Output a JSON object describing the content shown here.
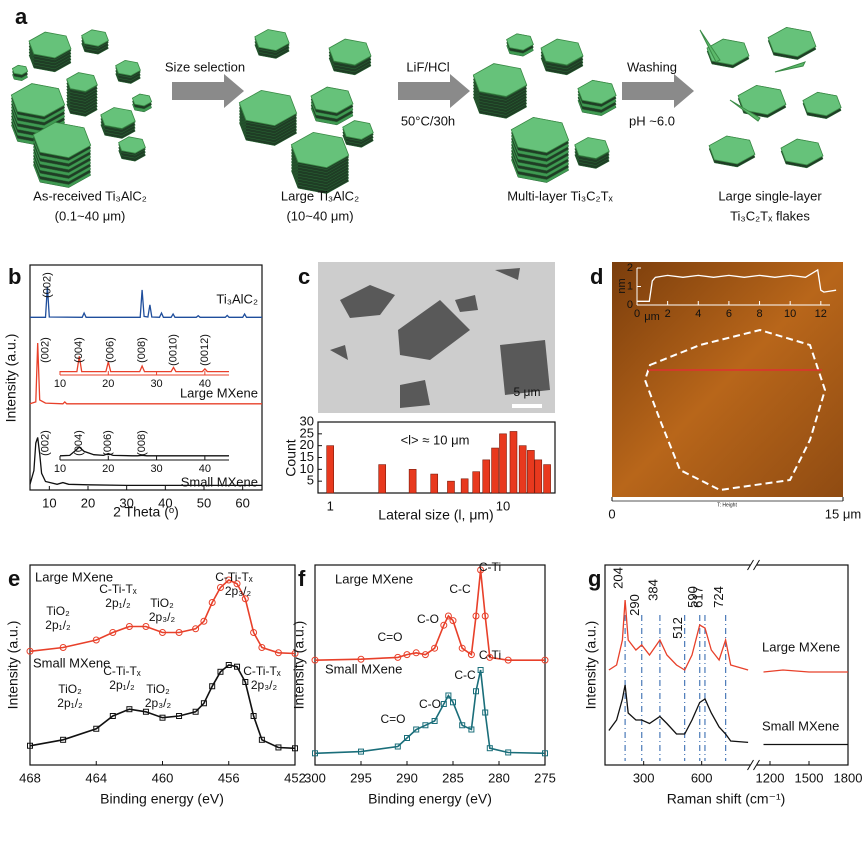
{
  "panel_labels": [
    "a",
    "b",
    "c",
    "d",
    "e",
    "f",
    "g"
  ],
  "schematic": {
    "steps": [
      {
        "above": "Size selection"
      },
      {
        "above": "LiF/HCl",
        "below": "50°C/30h"
      },
      {
        "above": "Washing",
        "below": "pH ~6.0"
      }
    ],
    "captions": [
      [
        "As-received Ti₃AlC₂",
        "(0.1~40 μm)"
      ],
      [
        "Large Ti₃AlC₂",
        "(10~40 μm)"
      ],
      [
        "Multi-layer Ti₃C₂Tₓ"
      ],
      [
        "Large single-layer",
        "Ti₃C₂Tₓ flakes"
      ]
    ]
  },
  "chart_data": [
    {
      "type": "line",
      "xlabel": "2 Theta (ᵒ)",
      "ylabel": "Intensity (a.u.)",
      "xlim": [
        5,
        65
      ],
      "xticks": [
        10,
        20,
        30,
        40,
        50,
        60
      ],
      "annotations": [
        {
          "text": "(002)",
          "x": 9.5,
          "color": "#1f4e9c"
        }
      ],
      "series": [
        {
          "name": "Ti₃AlC₂",
          "color": "#1f4e9c",
          "x": [
            5,
            9,
            9.5,
            10,
            18.5,
            19,
            19.5,
            33.5,
            34,
            34.5,
            35.5,
            36,
            36.5,
            38.5,
            39,
            39.5,
            41.5,
            42,
            42.5,
            48,
            48.5,
            49,
            55.5,
            56,
            56.5,
            60,
            60.5,
            61,
            65
          ],
          "values": [
            0.02,
            0.02,
            0.95,
            0.03,
            0.02,
            0.15,
            0.02,
            0.02,
            0.85,
            0.05,
            0.03,
            0.4,
            0.03,
            0.02,
            0.15,
            0.02,
            0.02,
            0.12,
            0.02,
            0.02,
            0.07,
            0.02,
            0.02,
            0.08,
            0.02,
            0.02,
            0.12,
            0.02,
            0.02
          ]
        },
        {
          "name": "Large MXene",
          "color": "#e8402a",
          "x": [
            5,
            6.5,
            7,
            7.5,
            9,
            13.5,
            14,
            14.5,
            20,
            28,
            35,
            45,
            55,
            65
          ],
          "values": [
            0.02,
            0.05,
            1,
            0.08,
            0.03,
            0.02,
            0.05,
            0.02,
            0.02,
            0.02,
            0.02,
            0.02,
            0.02,
            0.02
          ]
        },
        {
          "name": "Small MXene",
          "color": "#111111",
          "x": [
            5,
            6,
            6.5,
            7,
            7.5,
            8,
            9,
            12,
            13.5,
            15,
            20,
            30,
            40,
            50,
            65
          ],
          "values": [
            0.05,
            0.3,
            0.8,
            0.9,
            0.6,
            0.25,
            0.1,
            0.05,
            0.08,
            0.05,
            0.04,
            0.03,
            0.03,
            0.03,
            0.03
          ]
        }
      ]
    },
    {
      "type": "line",
      "xlim": [
        10,
        45
      ],
      "xticks": [
        10,
        20,
        30,
        40
      ],
      "annotations": [
        {
          "text": "(002)",
          "x": 7,
          "color": "#e8402a"
        },
        {
          "text": "(004)",
          "x": 14,
          "color": "#e8402a"
        },
        {
          "text": "(006)",
          "x": 20.5,
          "color": "#e8402a"
        },
        {
          "text": "(008)",
          "x": 27,
          "color": "#e8402a"
        },
        {
          "text": "(0010)",
          "x": 33.5,
          "color": "#e8402a"
        },
        {
          "text": "(0012)",
          "x": 40,
          "color": "#e8402a"
        }
      ],
      "series": [
        {
          "color": "#e8402a",
          "x": [
            10,
            13.5,
            14,
            14.5,
            19.5,
            20,
            20.5,
            26.5,
            27,
            27.5,
            33,
            33.5,
            34,
            39.5,
            40,
            40.5,
            45
          ],
          "values": [
            0.05,
            0.05,
            0.6,
            0.05,
            0.05,
            0.4,
            0.05,
            0.05,
            0.25,
            0.05,
            0.05,
            0.2,
            0.05,
            0.05,
            0.15,
            0.05,
            0.05
          ]
        }
      ]
    },
    {
      "type": "line",
      "xlim": [
        10,
        45
      ],
      "xticks": [
        10,
        20,
        30,
        40
      ],
      "annotations": [
        {
          "text": "(002)",
          "x": 7,
          "color": "#111111"
        },
        {
          "text": "(004)",
          "x": 14,
          "color": "#111111"
        },
        {
          "text": "(006)",
          "x": 20,
          "color": "#111111"
        },
        {
          "text": "(008)",
          "x": 27,
          "color": "#111111"
        }
      ],
      "series": [
        {
          "color": "#111111",
          "x": [
            10,
            12,
            13,
            14,
            15,
            17,
            19,
            20,
            21,
            25,
            26,
            27,
            28,
            35,
            45
          ],
          "values": [
            0.1,
            0.12,
            0.3,
            0.5,
            0.3,
            0.15,
            0.12,
            0.2,
            0.12,
            0.1,
            0.1,
            0.12,
            0.1,
            0.1,
            0.1
          ]
        }
      ]
    },
    {
      "type": "image",
      "scale_bar": "5 μm"
    },
    {
      "type": "bar",
      "log_x": true,
      "xlim": [
        0.85,
        20
      ],
      "xticks": [
        1,
        10
      ],
      "ylim": [
        0,
        30
      ],
      "yticks": [
        5,
        10,
        15,
        20,
        25,
        30
      ],
      "xlabel": "Lateral size (l, μm)",
      "ylabel": "Count",
      "color": "#e8391e",
      "annotations": [
        {
          "text": "<l> ≈ 10 μm"
        }
      ],
      "x": [
        1,
        2,
        3,
        4,
        5,
        6,
        7,
        8,
        9,
        10,
        11.5,
        13,
        14.5,
        16,
        18
      ],
      "values": [
        20,
        12,
        10,
        8,
        5,
        6,
        9,
        14,
        19,
        25,
        26,
        20,
        18,
        14,
        12
      ]
    },
    {
      "type": "image",
      "xlim": [
        0,
        15
      ],
      "xticks": [
        0,
        {
          "value": 15,
          "label": "15 μm"
        }
      ],
      "caption": "T: Height"
    },
    {
      "type": "line",
      "xlabel": "μm",
      "ylabel": "nm",
      "xlim": [
        0,
        12.6
      ],
      "xticks": [
        0,
        2,
        4,
        6,
        8,
        10,
        12
      ],
      "ylim": [
        0,
        2
      ],
      "yticks": [
        0,
        1,
        2
      ],
      "color": "#ffffff",
      "x": [
        0,
        0.8,
        1,
        1.2,
        2,
        3,
        4,
        5,
        6,
        7,
        8,
        9,
        10,
        11,
        11.8,
        12,
        12.2,
        13
      ],
      "values": [
        0.2,
        0.2,
        1.3,
        1.5,
        1.6,
        1.5,
        1.6,
        1.5,
        1.6,
        1.5,
        1.6,
        1.5,
        1.6,
        1.5,
        1.9,
        0.8,
        0.7,
        0.8
      ]
    },
    {
      "type": "line",
      "xlabel": "Binding energy (eV)",
      "ylabel": "Intensity (a.u.)",
      "xlim": [
        468,
        452
      ],
      "xticks": [
        468,
        464,
        460,
        456,
        452
      ],
      "x": [
        468,
        466,
        464,
        463,
        462,
        461,
        460,
        459,
        458,
        457.5,
        457,
        456.5,
        456,
        455.5,
        455,
        454.5,
        454,
        453,
        452
      ],
      "series": [
        {
          "name": "Large MXene",
          "color": "#e8402a",
          "marker": "circle",
          "values": [
            0.05,
            0.1,
            0.2,
            0.3,
            0.38,
            0.38,
            0.3,
            0.3,
            0.35,
            0.45,
            0.7,
            0.9,
            1,
            0.95,
            0.75,
            0.3,
            0.1,
            0.03,
            0.02
          ]
        },
        {
          "name": "Small MXene",
          "color": "#111111",
          "marker": "square",
          "values": [
            0.05,
            0.12,
            0.25,
            0.4,
            0.48,
            0.45,
            0.38,
            0.4,
            0.45,
            0.55,
            0.75,
            0.92,
            1,
            0.98,
            0.8,
            0.4,
            0.12,
            0.03,
            0.02
          ]
        }
      ],
      "annotations": [
        {
          "text": "TiO₂",
          "color": "#222222"
        },
        {
          "text": "2p₁/₂",
          "color": "#222222"
        },
        {
          "text": "C-Ti-Tₓ",
          "color": "#2e8b2e"
        },
        {
          "text": "2p₁/₂",
          "color": "#2e8b2e"
        },
        {
          "text": "TiO₂",
          "color": "#222222"
        },
        {
          "text": "2p₃/₂",
          "color": "#222222"
        },
        {
          "text": "C-Ti-Tₓ",
          "color": "#2e8b2e"
        },
        {
          "text": "2p₃/₂",
          "color": "#2e8b2e"
        },
        {
          "text": "TiO₂",
          "color": "#222222"
        },
        {
          "text": "2p₁/₂",
          "color": "#222222"
        },
        {
          "text": "C-Ti-Tₓ",
          "color": "#2e8b2e"
        },
        {
          "text": "2p₁/₂",
          "color": "#2e8b2e"
        },
        {
          "text": "TiO₂",
          "color": "#222222"
        },
        {
          "text": "2p₃/₂",
          "color": "#222222"
        },
        {
          "text": "C-Ti-Tₓ",
          "color": "#2e8b2e"
        },
        {
          "text": "2p₃/₂",
          "color": "#2e8b2e"
        }
      ]
    },
    {
      "type": "line",
      "xlabel": "Binding energy (eV)",
      "ylabel": "Intensity (a.u.)",
      "xlim": [
        300,
        275
      ],
      "xticks": [
        300,
        295,
        290,
        285,
        280,
        275
      ],
      "x": [
        300,
        295,
        291,
        290,
        289,
        288,
        287,
        286,
        285.5,
        285,
        284,
        283,
        282.5,
        282,
        281.5,
        281,
        279,
        275
      ],
      "series": [
        {
          "name": "Large MXene",
          "color": "#e8402a",
          "marker": "circle",
          "values": [
            0.02,
            0.03,
            0.05,
            0.08,
            0.1,
            0.08,
            0.15,
            0.4,
            0.5,
            0.45,
            0.15,
            0.08,
            0.5,
            1,
            0.5,
            0.05,
            0.02,
            0.02
          ]
        },
        {
          "name": "Small MXene",
          "color": "#1a6e7a",
          "marker": "square",
          "values": [
            0.02,
            0.04,
            0.1,
            0.2,
            0.3,
            0.35,
            0.4,
            0.6,
            0.7,
            0.62,
            0.35,
            0.3,
            0.75,
            1,
            0.5,
            0.08,
            0.03,
            0.02
          ]
        }
      ],
      "annotations": [
        {
          "text": "C=O",
          "color": "#1f4e9c"
        },
        {
          "text": "C-O",
          "color": "#1f4e9c"
        },
        {
          "text": "C-C",
          "color": "#d9792b"
        },
        {
          "text": "C-Ti",
          "color": "#2e8b2e"
        },
        {
          "text": "C=O",
          "color": "#1f4e9c"
        },
        {
          "text": "C-O",
          "color": "#1f4e9c"
        },
        {
          "text": "C-C",
          "color": "#d9792b"
        },
        {
          "text": "C-Ti",
          "color": "#2e8b2e"
        }
      ]
    },
    {
      "type": "line",
      "xlabel": "Raman shift (cm⁻¹)",
      "ylabel": "Intensity (a.u.)",
      "xlim_segments": [
        [
          100,
          850
        ],
        [
          1100,
          1800
        ]
      ],
      "xticks": [
        300,
        600,
        1200,
        1500,
        1800
      ],
      "peaks": [
        204,
        290,
        384,
        512,
        590,
        617,
        724
      ],
      "x": [
        120,
        160,
        190,
        204,
        220,
        260,
        290,
        330,
        384,
        420,
        470,
        512,
        550,
        590,
        617,
        650,
        690,
        724,
        750,
        840,
        1000,
        1150,
        1300,
        1500,
        1800
      ],
      "series": [
        {
          "name": "Large MXene",
          "color": "#e8402a",
          "values": [
            0.3,
            0.35,
            0.6,
            1,
            0.6,
            0.5,
            0.55,
            0.45,
            0.6,
            0.45,
            0.35,
            0.3,
            0.45,
            0.75,
            0.72,
            0.5,
            0.4,
            0.6,
            0.35,
            0.3,
            null,
            0.28,
            0.3,
            0.28,
            0.28
          ]
        },
        {
          "name": "Small MXene",
          "color": "#111111",
          "values": [
            0.35,
            0.5,
            0.8,
            1,
            0.6,
            0.5,
            0.5,
            0.45,
            0.55,
            0.45,
            0.3,
            0.3,
            0.5,
            0.75,
            0.8,
            0.6,
            0.4,
            0.3,
            0.2,
            0.18,
            null,
            0.15,
            0.15,
            0.15,
            0.15
          ]
        }
      ]
    }
  ]
}
